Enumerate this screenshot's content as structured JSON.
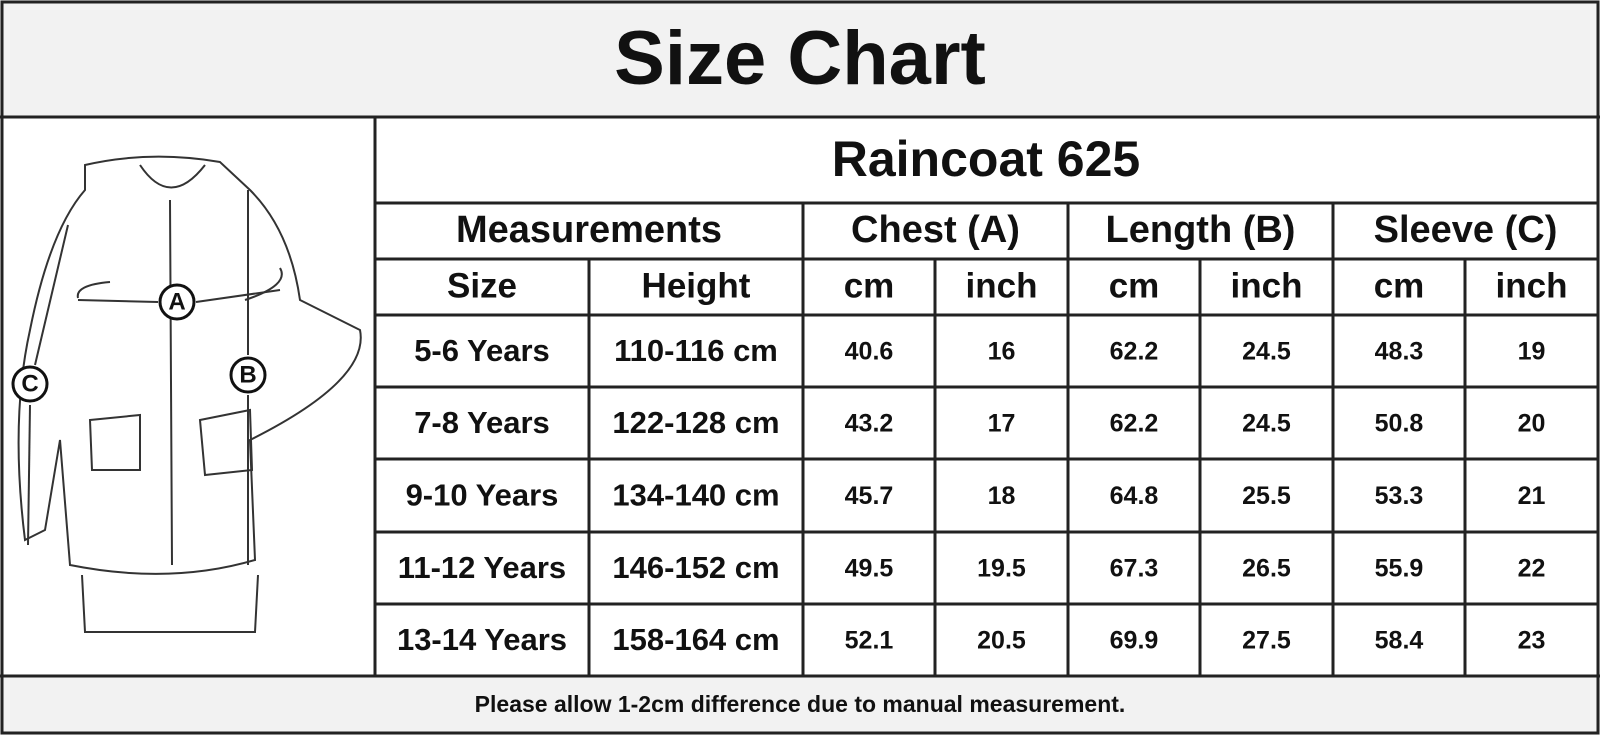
{
  "title": "Size Chart",
  "figure": {
    "labels": [
      "A",
      "B",
      "C"
    ]
  },
  "table": {
    "title": "Raincoat 625",
    "groups": [
      "Measurements",
      "Chest (A)",
      "Length (B)",
      "Sleeve (C)"
    ],
    "columns": [
      "Size",
      "Height",
      "cm",
      "inch",
      "cm",
      "inch",
      "cm",
      "inch"
    ],
    "rows": [
      [
        "5-6 Years",
        "110-116 cm",
        "40.6",
        "16",
        "62.2",
        "24.5",
        "48.3",
        "19"
      ],
      [
        "7-8 Years",
        "122-128 cm",
        "43.2",
        "17",
        "62.2",
        "24.5",
        "50.8",
        "20"
      ],
      [
        "9-10 Years",
        "134-140 cm",
        "45.7",
        "18",
        "64.8",
        "25.5",
        "53.3",
        "21"
      ],
      [
        "11-12 Years",
        "146-152 cm",
        "49.5",
        "19.5",
        "67.3",
        "26.5",
        "55.9",
        "22"
      ],
      [
        "13-14 Years",
        "158-164 cm",
        "52.1",
        "20.5",
        "69.9",
        "27.5",
        "58.4",
        "23"
      ]
    ]
  },
  "footer": "Please allow 1-2cm difference due to manual measurement."
}
